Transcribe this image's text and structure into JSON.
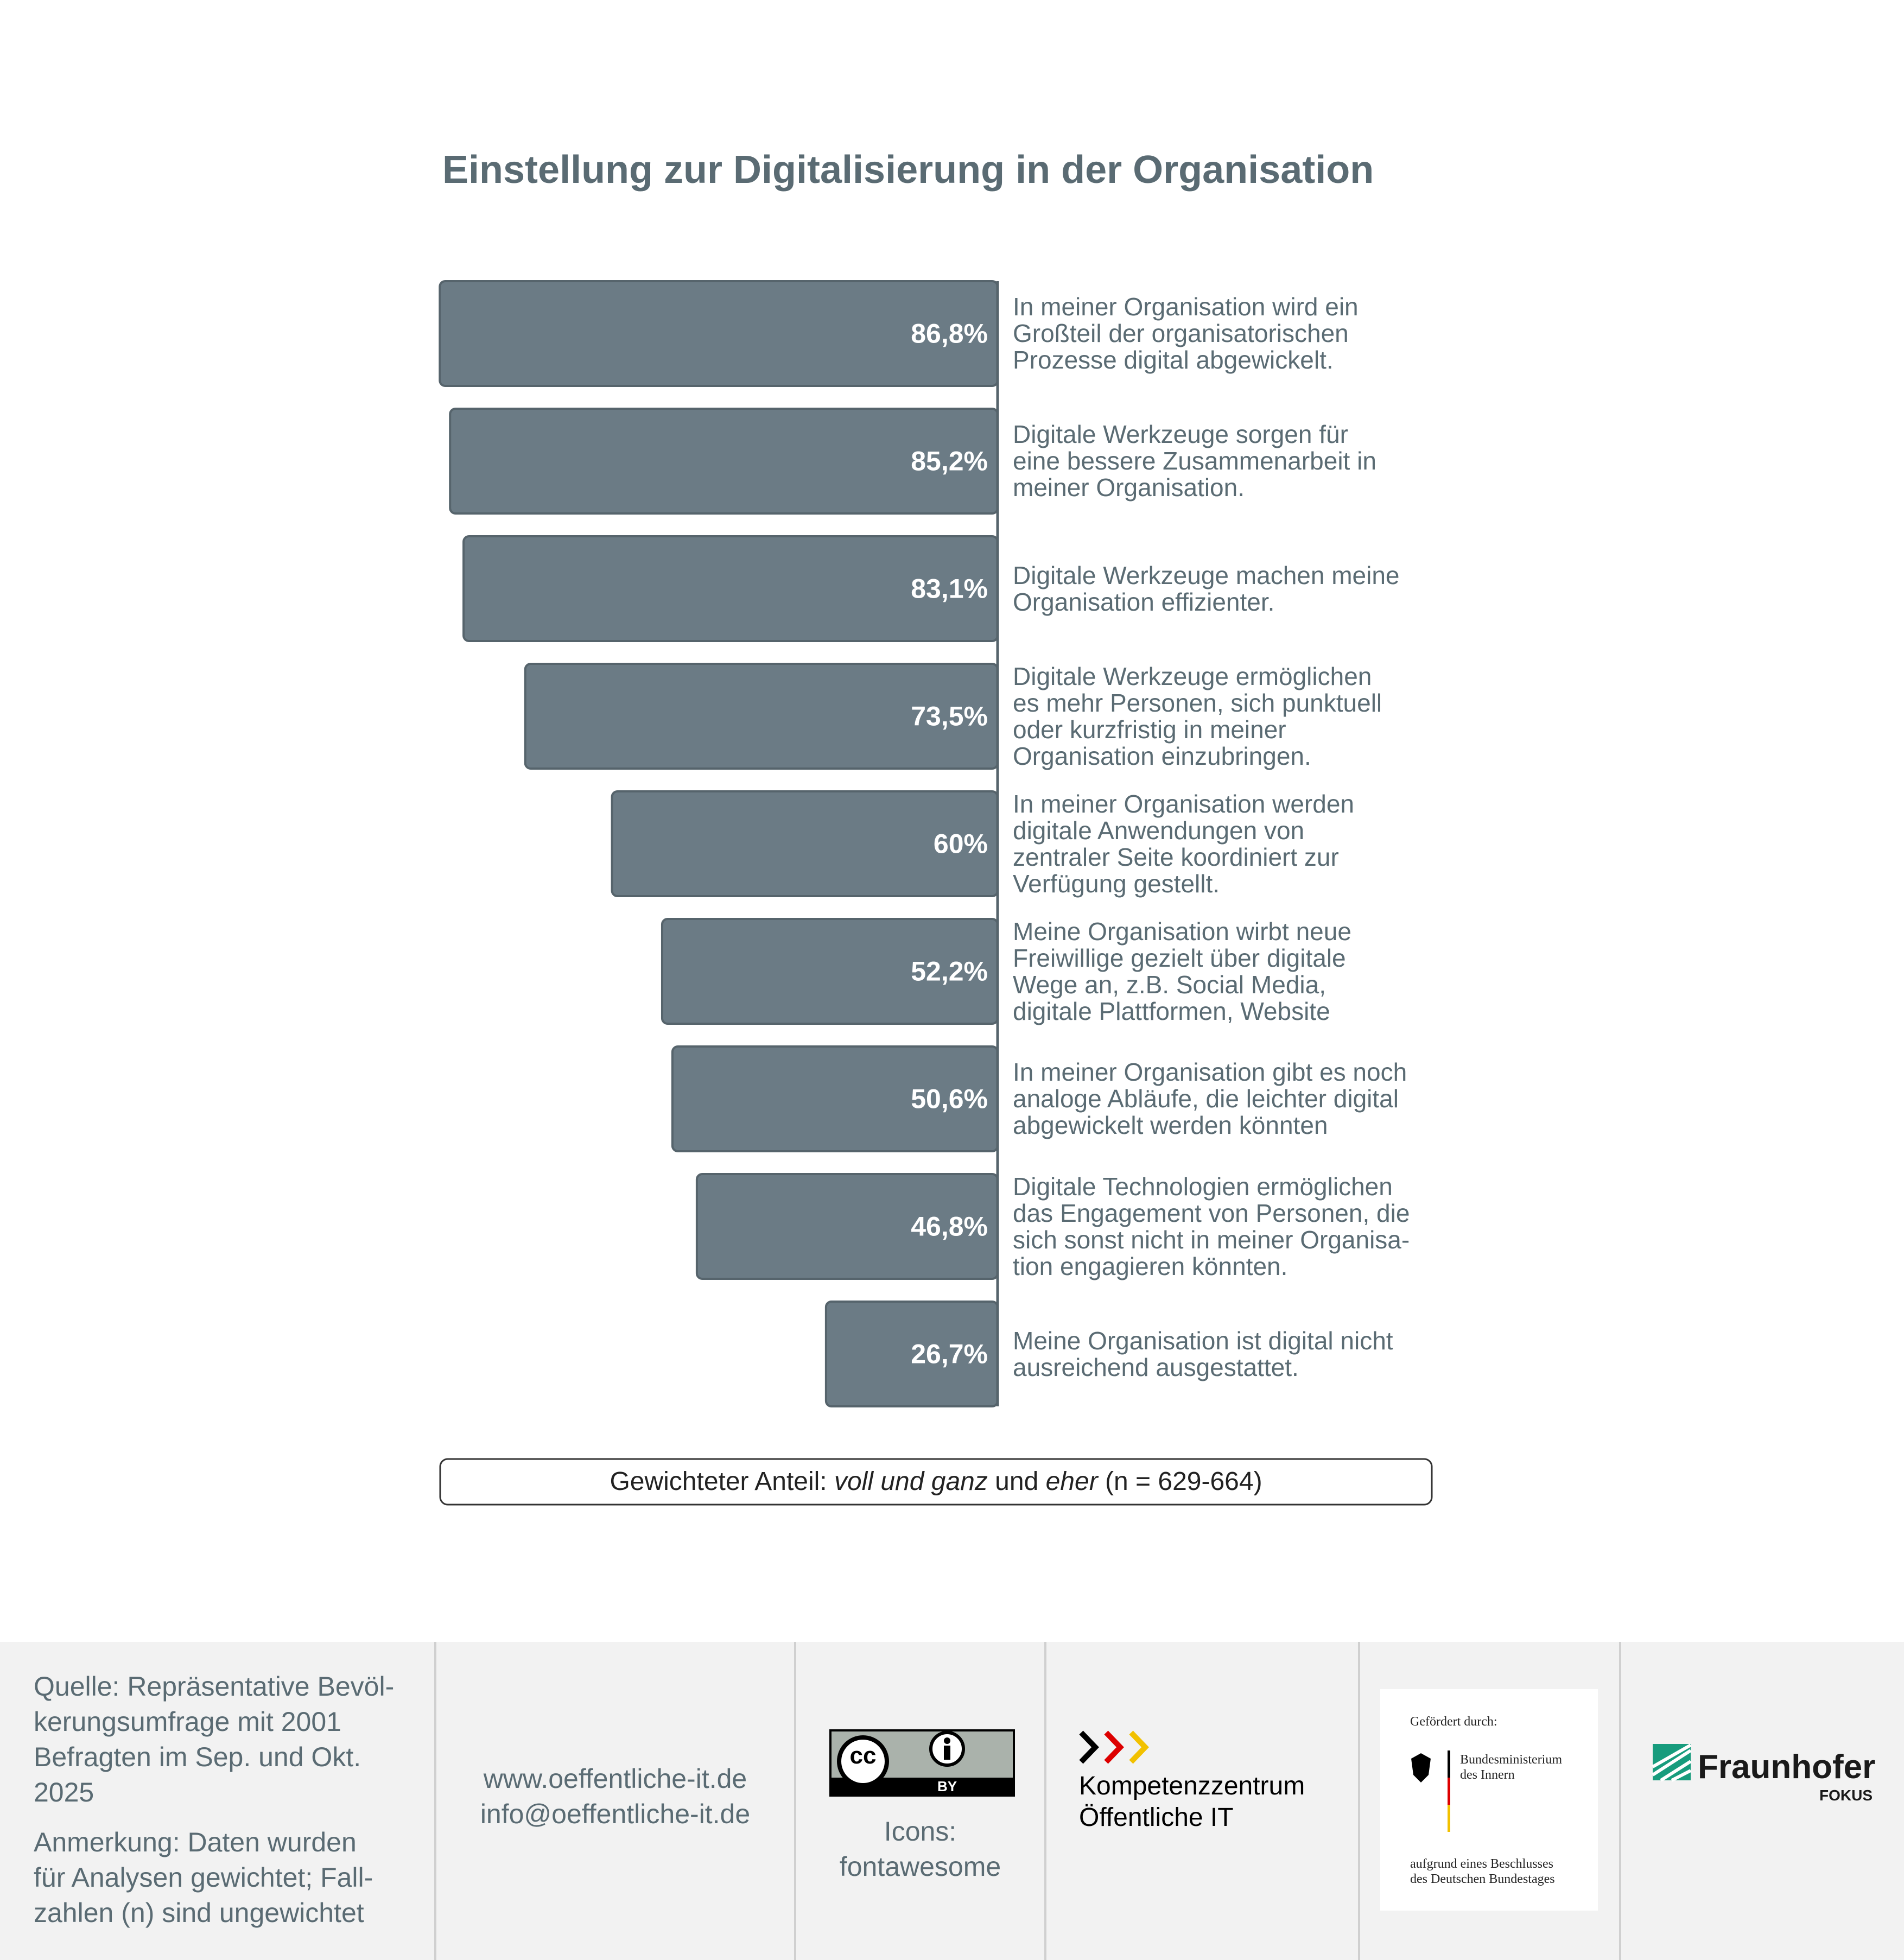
{
  "chart_data": {
    "type": "bar",
    "orientation": "horizontal",
    "title": "Einstellung zur Digitalisierung in der Organisation",
    "categories": [
      "In meiner Organisation wird ein\nGroßteil der organisatorischen\nProzesse digital abgewickelt.",
      "Digitale Werkzeuge sorgen für\neine bessere Zusammenarbeit in\nmeiner Organisation.",
      "Digitale Werkzeuge machen meine\nOrganisation effizienter.",
      "Digitale Werkzeuge ermöglichen\nes mehr Personen, sich punktuell\noder kurzfristig in meiner\nOrganisation einzubringen.",
      "In meiner Organisation werden\ndigitale Anwendungen von\nzentraler Seite koordiniert zur\nVerfügung gestellt.",
      "Meine Organisation wirbt neue\nFreiwillige gezielt über digitale\nWege an, z.B. Social Media,\ndigitale Plattformen, Website",
      "In meiner Organisation gibt es noch\nanaloge Abläufe, die leichter digital\nabgewickelt werden könnten",
      "Digitale Technologien ermöglichen\ndas Engagement von Personen, die\nsich sonst nicht in meiner Organisa-\ntion engagieren könnten.",
      "Meine Organisation ist digital nicht\nausreichend ausgestattet."
    ],
    "values": [
      86.8,
      85.2,
      83.1,
      73.5,
      60,
      52.2,
      50.6,
      46.8,
      26.7
    ],
    "value_labels": [
      "86,8%",
      "85,2%",
      "83,1%",
      "73,5%",
      "60%",
      "52,2%",
      "50,6%",
      "46,8%",
      "26,7%"
    ],
    "color": "#6b7b85",
    "note": [
      "Gewichteter Anteil: ",
      "voll und ganz",
      " und ",
      "eher",
      " (n = 629-664)"
    ]
  },
  "footer": {
    "source": "Quelle: Repräsentative Bevöl-\nkerungsumfrage mit 2001\nBefragten im Sep. und Okt.\n2025",
    "remark": "Anmerkung: Daten wurden\nfür Analysen gewichtet; Fall-\nzahlen (n) sind ungewichtet",
    "web": "www.oeffentliche-it.de",
    "mail": "info@oeffentliche-it.de",
    "license": {
      "mark": "cc",
      "term": "BY"
    },
    "icons": "Icons:\nfontawesome",
    "kompetenz": "Kompetenzzentrum\nÖffentliche IT",
    "funded_by": "Gefördert durch:",
    "ministry": "Bundesministerium\ndes Innern",
    "decision": "aufgrund eines Beschlusses\ndes Deutschen Bundestages",
    "fraunhofer": "Fraunhofer",
    "fokus": "FOKUS"
  }
}
